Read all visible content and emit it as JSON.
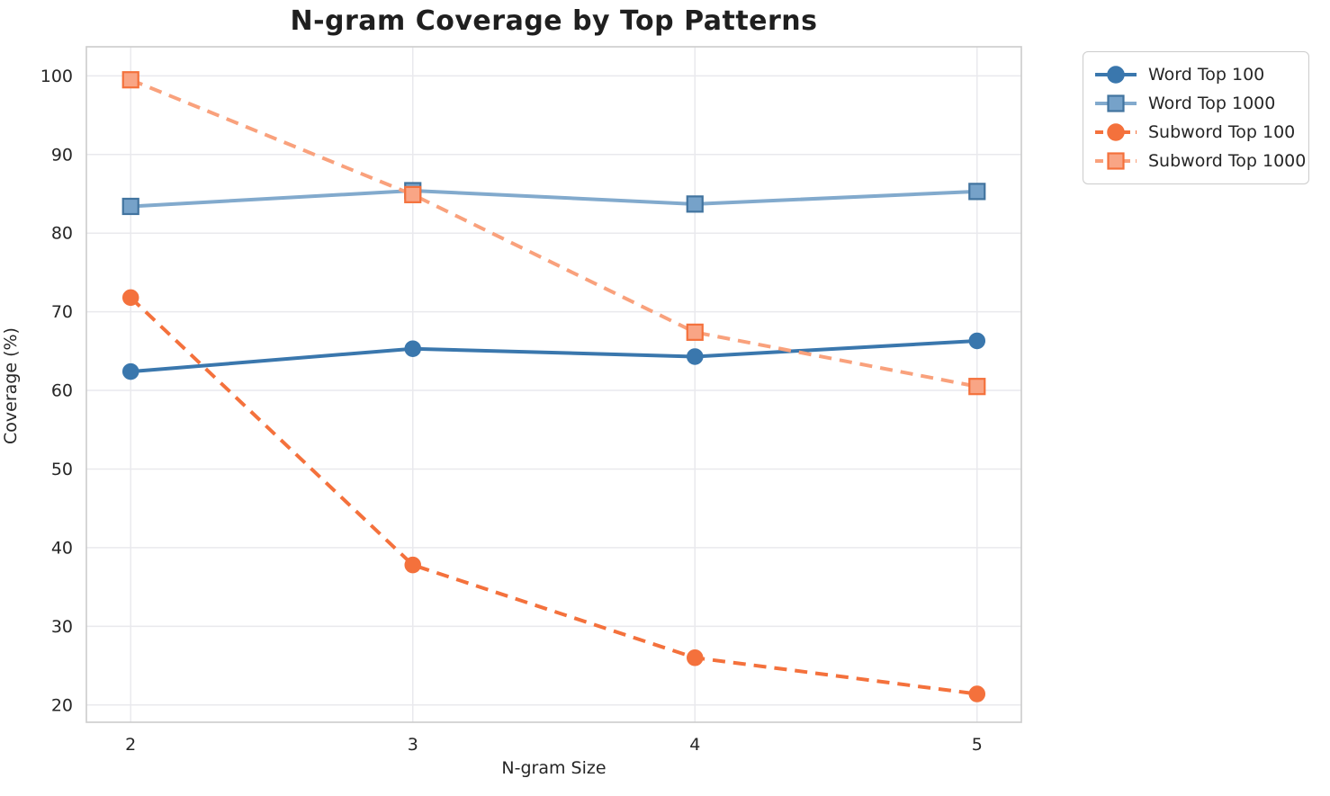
{
  "title": "N-gram Coverage by Top Patterns",
  "chart_data": {
    "type": "line",
    "title": "N-gram Coverage by Top Patterns",
    "xlabel": "N-gram Size",
    "ylabel": "Coverage (%)",
    "x": [
      2,
      3,
      4,
      5
    ],
    "xticks": [
      "2",
      "3",
      "4",
      "5"
    ],
    "yticks": [
      20,
      30,
      40,
      50,
      60,
      70,
      80,
      90,
      100
    ],
    "xlim": [
      1.843,
      5.157
    ],
    "ylim": [
      17.8,
      103.7
    ],
    "grid": true,
    "legend_position": "outside-top-right",
    "background_color": "#ffffff",
    "grid_color": "#e9e9ed",
    "spine_color": "#cccccc",
    "text_color": "#262626",
    "series": [
      {
        "name": "Word Top 100",
        "values": [
          62.4,
          65.3,
          64.3,
          66.3
        ],
        "color": "#3a77ad",
        "marker": "circle",
        "marker_fill": "#3a77ad",
        "marker_edge": "#3a77ad",
        "line_style": "solid"
      },
      {
        "name": "Word Top 1000",
        "values": [
          83.4,
          85.4,
          83.7,
          85.3
        ],
        "color": "#82aacd",
        "marker": "square",
        "marker_fill": "#76a2c9",
        "marker_edge": "#42749f",
        "line_style": "solid"
      },
      {
        "name": "Subword Top 100",
        "values": [
          71.8,
          37.8,
          26.0,
          21.4
        ],
        "color": "#f4713c",
        "marker": "circle",
        "marker_fill": "#f4713c",
        "marker_edge": "#f4713c",
        "line_style": "dashed"
      },
      {
        "name": "Subword Top 1000",
        "values": [
          99.5,
          84.9,
          67.4,
          60.5
        ],
        "color": "#f9a17c",
        "marker": "square",
        "marker_fill": "#f9a585",
        "marker_edge": "#f4713c",
        "line_style": "dashed"
      }
    ]
  }
}
